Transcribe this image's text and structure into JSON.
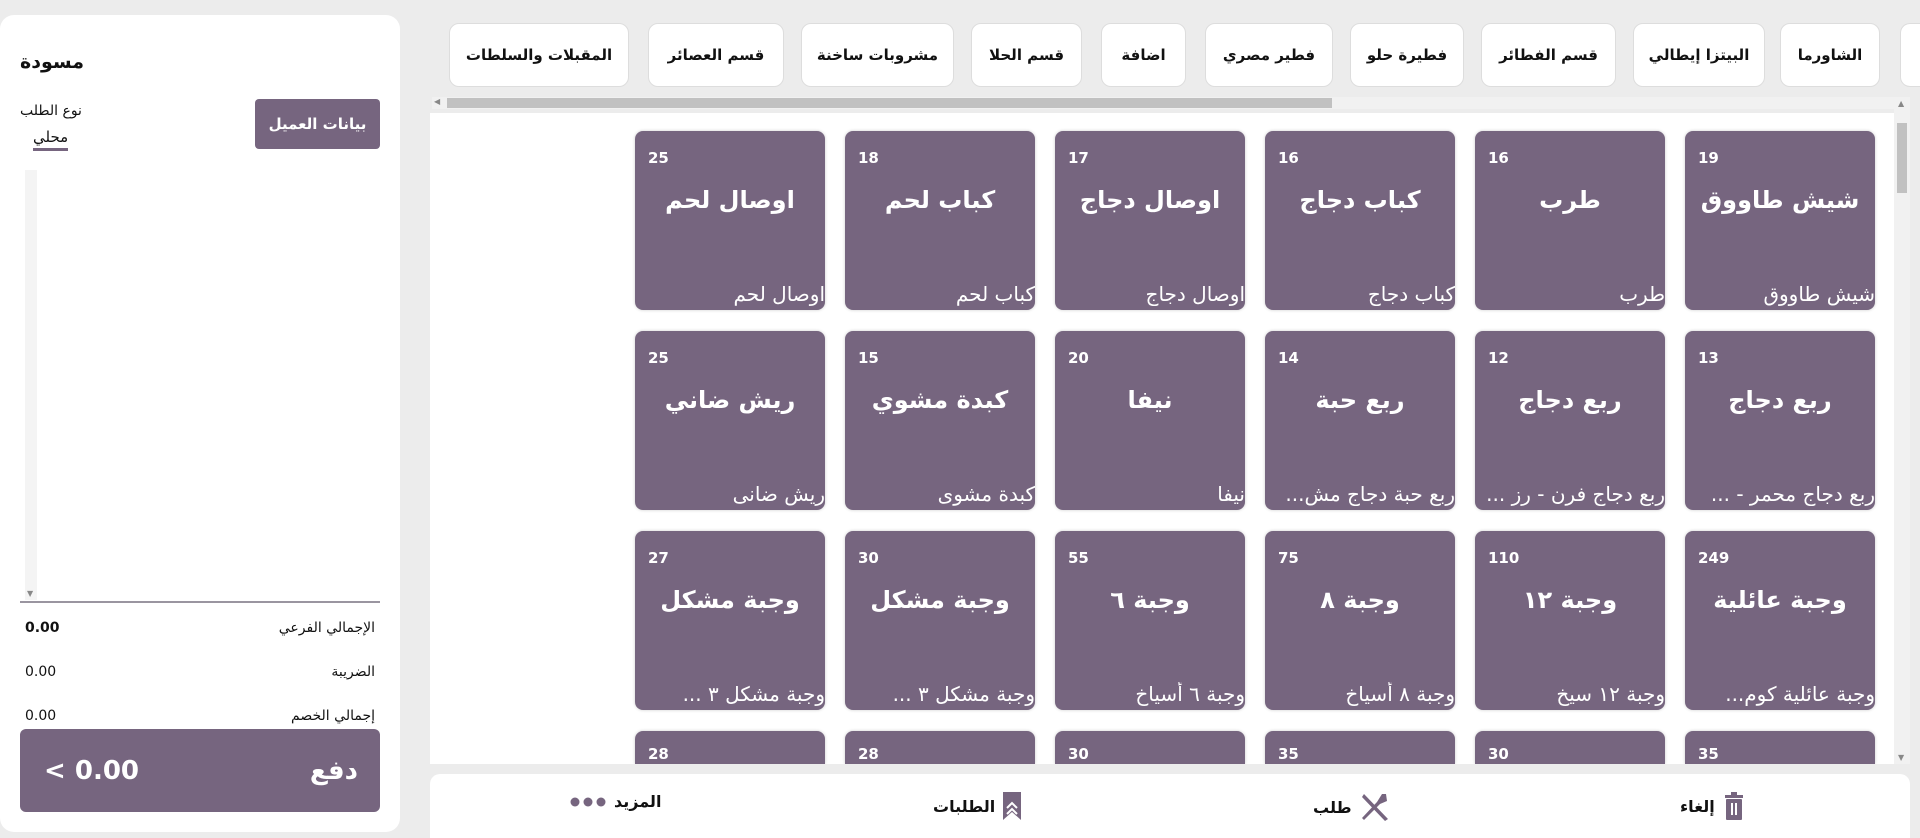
{
  "order_panel": {
    "title": "مسودة",
    "order_type_label": "نوع الطلب",
    "order_type_value": "محلي",
    "customer_button": "بيانات العميل",
    "totals": [
      {
        "label": "الإجمالي الفرعي",
        "value": "0.00"
      },
      {
        "label": "الضريبة",
        "value": "0.00"
      },
      {
        "label": "إجمالي الخصم",
        "value": "0.00"
      }
    ],
    "pay_label": "دفع",
    "pay_amount": "0.00",
    "pay_arrow": "<"
  },
  "categories": [
    "الشاورما",
    "البيتزا إيطالي",
    "قسم الفطائر",
    "فطيرة حلو",
    "فطير مصري",
    "اضافة",
    "قسم الحلا",
    "مشروبات ساخنة",
    "قسم العصائر",
    "المقبلات والسلطات"
  ],
  "products": [
    {
      "name": "شيش طاووق",
      "sub": "شيش طاووق",
      "price": "19"
    },
    {
      "name": "طرب",
      "sub": "طرب",
      "price": "16"
    },
    {
      "name": "كباب دجاج",
      "sub": "كباب دجاج",
      "price": "16"
    },
    {
      "name": "اوصال دجاج",
      "sub": "اوصال دجاج",
      "price": "17"
    },
    {
      "name": "كباب لحم",
      "sub": "كباب لحم",
      "price": "18"
    },
    {
      "name": "اوصال لحم",
      "sub": "اوصال لحم",
      "price": "25"
    },
    {
      "name": "ربع دجاج",
      "sub": "ربع دجاج محمر - ...",
      "price": "13"
    },
    {
      "name": "ربع دجاج",
      "sub": "ربع دجاج فرن - رز ...",
      "price": "12"
    },
    {
      "name": "ربع حبة",
      "sub": "ربع حبة دجاج مش...",
      "price": "14"
    },
    {
      "name": "نيفا",
      "sub": "نيفا",
      "price": "20"
    },
    {
      "name": "كبدة مشوي",
      "sub": "كبدة مشوى",
      "price": "15"
    },
    {
      "name": "ريش ضاني",
      "sub": "ريش ضانى",
      "price": "25"
    },
    {
      "name": "وجبة عائلية",
      "sub": "وجبة عائلية كوم...",
      "price": "249"
    },
    {
      "name": "وجبة ١٢",
      "sub": "وجبة ١٢ سيخ",
      "price": "110"
    },
    {
      "name": "وجبة ٨",
      "sub": "وجبة ٨ أسياخ",
      "price": "75"
    },
    {
      "name": "وجبة ٦",
      "sub": "وجبة ٦ أسياخ",
      "price": "55"
    },
    {
      "name": "وجبة مشكل",
      "sub": "وجبة مشكل ٣ ...",
      "price": "30"
    },
    {
      "name": "وجبة مشكل",
      "sub": "وجبة مشكل ٣ ...",
      "price": "27"
    },
    {
      "price": "35"
    },
    {
      "price": "30"
    },
    {
      "price": "35"
    },
    {
      "price": "30"
    },
    {
      "price": "28"
    },
    {
      "price": "28"
    }
  ],
  "bottom_bar": {
    "cancel": "إلغاء",
    "order": "طلب",
    "orders": "الطلبات",
    "more": "المزيد"
  },
  "colors": {
    "accent": "#76657f",
    "background": "#ececec"
  }
}
